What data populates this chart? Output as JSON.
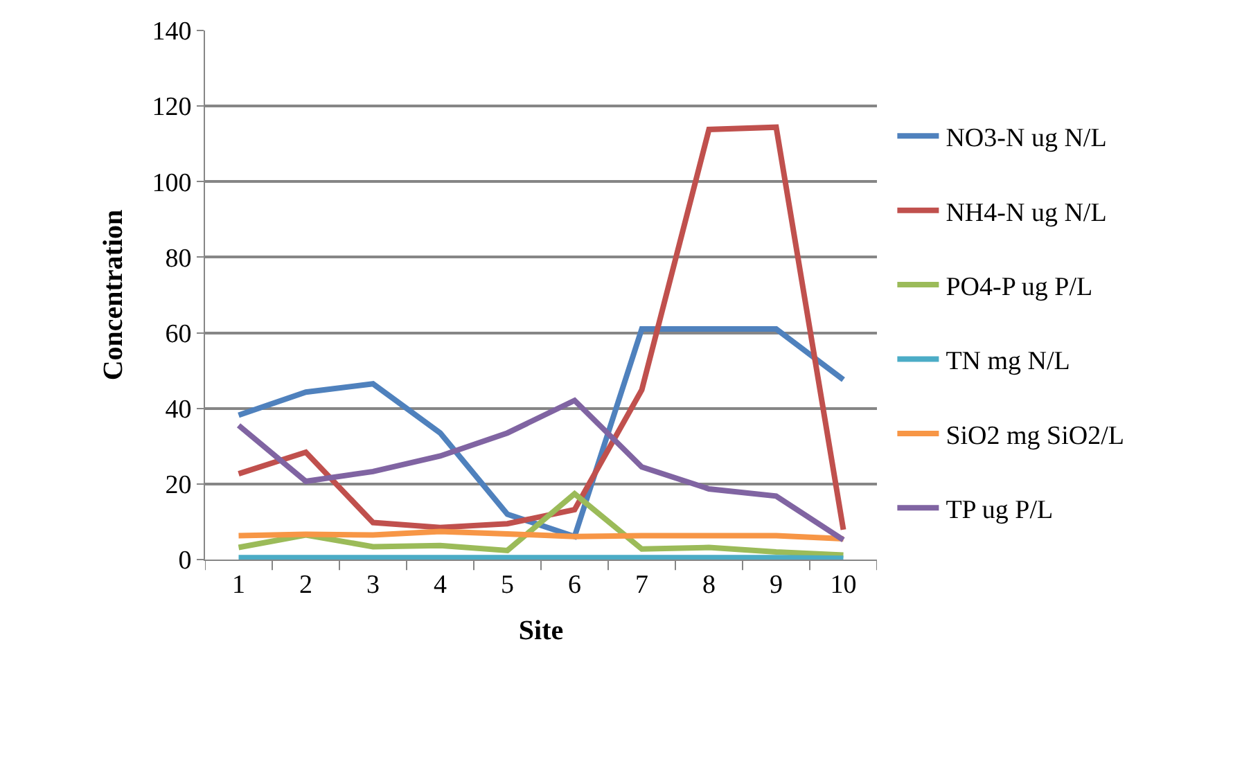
{
  "chart_data": {
    "type": "line",
    "xlabel": "Site",
    "ylabel": "Concentration",
    "categories": [
      "1",
      "2",
      "3",
      "4",
      "5",
      "6",
      "7",
      "8",
      "9",
      "10"
    ],
    "series": [
      {
        "name": "NO3-N ug N/L",
        "color": "#4f81bd",
        "values": [
          38.2,
          44.3,
          46.5,
          33.5,
          12,
          6.1,
          61,
          61,
          61,
          47.6
        ]
      },
      {
        "name": "NH4-N ug N/L",
        "color": "#c0504d",
        "values": [
          22.7,
          28.4,
          9.8,
          8.5,
          9.5,
          13.2,
          44.9,
          113.8,
          114.4,
          7.9
        ]
      },
      {
        "name": "PO4-P ug P/L",
        "color": "#9bbb59",
        "values": [
          3.2,
          6.5,
          3.4,
          3.7,
          2.4,
          17.4,
          2.8,
          3.2,
          2,
          1.2
        ]
      },
      {
        "name": "TN mg N/L",
        "color": "#4bacc6",
        "values": [
          0.5,
          0.5,
          0.5,
          0.5,
          0.5,
          0.5,
          0.5,
          0.5,
          0.5,
          0.3
        ]
      },
      {
        "name": "SiO2 mg SiO2/L",
        "color": "#f79646",
        "values": [
          6.3,
          6.7,
          6.5,
          7.4,
          6.8,
          6.1,
          6.3,
          6.3,
          6.3,
          5.5
        ]
      },
      {
        "name": "TP ug P/L",
        "color": "#8064a2",
        "values": [
          35.5,
          20.7,
          23.3,
          27.4,
          33.5,
          42.1,
          24.5,
          18.7,
          16.8,
          5.2
        ]
      }
    ],
    "ylim": [
      0,
      140
    ],
    "yticks": [
      0,
      20,
      40,
      60,
      80,
      100,
      120,
      140
    ],
    "grid": "y",
    "legend": "right",
    "marker": "none",
    "line_style": "solid"
  }
}
